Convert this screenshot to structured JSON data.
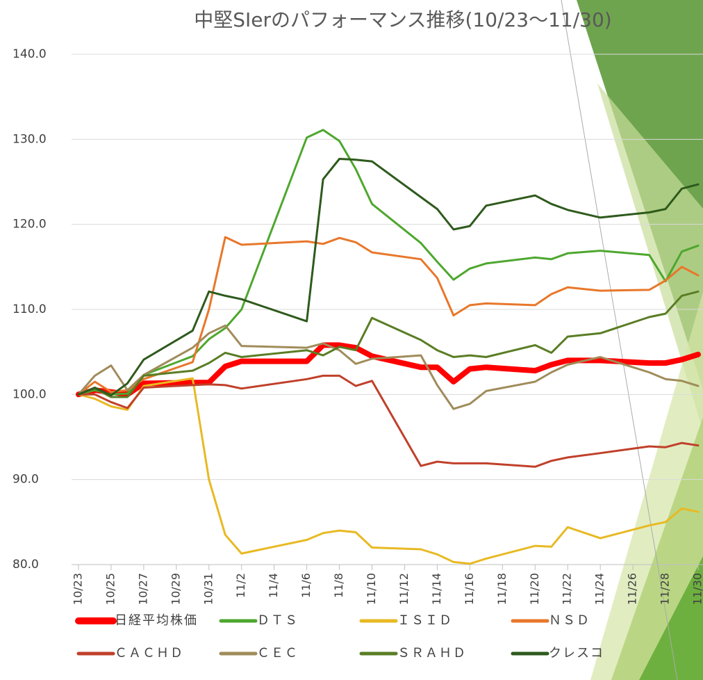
{
  "chart_data": {
    "type": "line",
    "title": "中堅SIerのパフォーマンス推移(10/23～11/30)",
    "x": [
      "10/23",
      "10/24",
      "10/25",
      "10/26",
      "10/27",
      "10/30",
      "10/31",
      "11/1",
      "11/2",
      "11/6",
      "11/7",
      "11/8",
      "11/9",
      "11/10",
      "11/13",
      "11/14",
      "11/15",
      "11/16",
      "11/17",
      "11/20",
      "11/21",
      "11/22",
      "11/24",
      "11/27",
      "11/28",
      "11/29",
      "11/30"
    ],
    "xlim": [
      "10/23",
      "11/30"
    ],
    "xticks": [
      "10/23",
      "10/25",
      "10/27",
      "10/29",
      "10/31",
      "11/2",
      "11/4",
      "11/6",
      "11/8",
      "11/10",
      "11/12",
      "11/14",
      "11/16",
      "11/18",
      "11/20",
      "11/22",
      "11/24",
      "11/26",
      "11/28",
      "11/30"
    ],
    "ylim": [
      80,
      140
    ],
    "yticks": [
      {
        "value": 80,
        "label": "80.0"
      },
      {
        "value": 90,
        "label": "90.0"
      },
      {
        "value": 100,
        "label": "100.0"
      },
      {
        "value": 110,
        "label": "110.0"
      },
      {
        "value": 120,
        "label": "120.0"
      },
      {
        "value": 130,
        "label": "130.0"
      },
      {
        "value": 140,
        "label": "140.0"
      }
    ],
    "grid": true,
    "series": [
      {
        "name": "日経平均株価",
        "color": "#ff0000",
        "width": 8,
        "values": [
          100,
          100.5,
          100.3,
          100,
          101.3,
          101.4,
          101.4,
          103.3,
          103.9,
          103.9,
          105.8,
          105.8,
          105.5,
          104.5,
          103.2,
          103.2,
          101.5,
          103,
          103.2,
          102.8,
          103.5,
          104,
          104,
          103.7,
          103.7,
          104.1,
          104.7
        ]
      },
      {
        "name": "ＤＴＳ",
        "color": "#4ea72e",
        "width": 3,
        "values": [
          100,
          100.5,
          100,
          100.1,
          102.3,
          104.5,
          106.5,
          107.8,
          110,
          130.2,
          131.1,
          129.8,
          126.5,
          122.4,
          117.8,
          115.6,
          113.5,
          114.8,
          115.4,
          116.1,
          115.9,
          116.6,
          116.9,
          116.4,
          113.3,
          116.8,
          117.5
        ]
      },
      {
        "name": "ＩＳＩＤ",
        "color": "#e8b923",
        "width": 3,
        "values": [
          100,
          99.5,
          98.6,
          98.2,
          101,
          101.9,
          90,
          83.5,
          81.3,
          82.9,
          83.7,
          84,
          83.8,
          82,
          81.8,
          81.2,
          80.3,
          80.1,
          80.7,
          82.2,
          82.1,
          84.4,
          83.1,
          84.6,
          85,
          86.6,
          86.2
        ]
      },
      {
        "name": "ＮＳＤ",
        "color": "#e8772a",
        "width": 3,
        "values": [
          100,
          101.5,
          100.3,
          100.5,
          101.8,
          103.8,
          110,
          118.5,
          117.6,
          118,
          117.7,
          118.4,
          117.9,
          116.7,
          115.9,
          113.7,
          109.3,
          110.5,
          110.7,
          110.5,
          111.8,
          112.6,
          112.2,
          112.3,
          113.4,
          115,
          114
        ]
      },
      {
        "name": "ＣＡＣＨＤ",
        "color": "#c0402a",
        "width": 3,
        "values": [
          100,
          100,
          99.1,
          98.4,
          100.8,
          101.1,
          101.2,
          101.1,
          100.7,
          101.8,
          102.2,
          102.2,
          101,
          101.6,
          91.6,
          92.1,
          91.9,
          91.9,
          91.9,
          91.5,
          92.2,
          92.6,
          93.1,
          93.9,
          93.8,
          94.3,
          94
        ]
      },
      {
        "name": "ＣＥＣ",
        "color": "#a08c5a",
        "width": 3,
        "values": [
          100,
          102.2,
          103.4,
          100.5,
          102.3,
          105.5,
          107.2,
          108.1,
          105.7,
          105.5,
          106,
          105.2,
          103.6,
          104.2,
          104.6,
          101.1,
          98.3,
          98.9,
          100.4,
          101.5,
          102.6,
          103.5,
          104.4,
          102.6,
          101.8,
          101.6,
          101
        ]
      },
      {
        "name": "ＳＲＡＨＤ",
        "color": "#5a7d24",
        "width": 3,
        "values": [
          100,
          100.7,
          99.7,
          99.7,
          102.2,
          102.8,
          103.7,
          104.9,
          104.4,
          105.2,
          104.6,
          105.6,
          105.2,
          109,
          106.4,
          105.2,
          104.4,
          104.6,
          104.4,
          105.8,
          104.9,
          106.8,
          107.2,
          109.1,
          109.5,
          111.6,
          112.1
        ]
      },
      {
        "name": "クレスコ",
        "color": "#2e5a1c",
        "width": 3,
        "values": [
          100,
          100.8,
          99.9,
          101.3,
          104.1,
          107.5,
          112.1,
          111.6,
          111.2,
          108.6,
          125.3,
          127.7,
          127.6,
          127.4,
          123.2,
          121.8,
          119.4,
          119.8,
          122.2,
          123.4,
          122.4,
          121.7,
          120.8,
          121.4,
          121.8,
          124.2,
          124.7
        ]
      }
    ]
  }
}
